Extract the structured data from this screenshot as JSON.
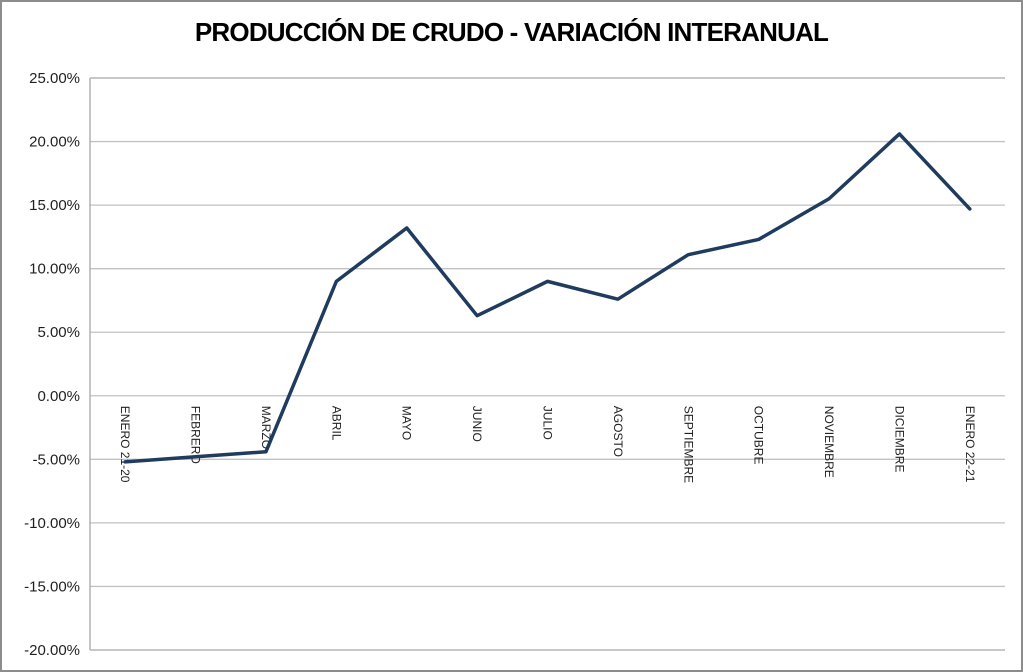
{
  "chart_data": {
    "type": "line",
    "title": "PRODUCCIÓN DE CRUDO - VARIACIÓN INTERANUAL",
    "categories": [
      "ENERO 21-20",
      "FEBRERO",
      "MARZO",
      "ABRIL",
      "MAYO",
      "JUNIO",
      "JULIO",
      "AGOSTO",
      "SEPTIEMBRE",
      "OCTUBRE",
      "NOVIEMBRE",
      "DICIEMBRE",
      "ENERO 22-21"
    ],
    "series": [
      {
        "name": "VARIACIÓN INTERANUAL",
        "values": [
          -5.2,
          -4.8,
          -4.4,
          9.0,
          13.2,
          6.3,
          9.0,
          7.6,
          11.1,
          12.3,
          15.5,
          20.6,
          14.7
        ]
      }
    ],
    "unit": "%",
    "xlabel": "",
    "ylabel": "",
    "ylim": [
      -20,
      25
    ],
    "grid": true,
    "legend": "none",
    "y_axis": {
      "ticks": [
        {
          "value": 25,
          "label": "25.00%"
        },
        {
          "value": 20,
          "label": "20.00%"
        },
        {
          "value": 15,
          "label": "15.00%"
        },
        {
          "value": 10,
          "label": "10.00%"
        },
        {
          "value": 5,
          "label": "5.00%"
        },
        {
          "value": 0,
          "label": "0.00%"
        },
        {
          "value": -5,
          "label": "-5.00%"
        },
        {
          "value": -10,
          "label": "-10.00%"
        },
        {
          "value": -15,
          "label": "-15.00%"
        },
        {
          "value": -20,
          "label": "-20.00%"
        }
      ]
    },
    "colors": {
      "line": "#1F3B5E",
      "gridline": "#C2C2C2",
      "axis": "#A6A6A6",
      "border": "#8C8C8C",
      "tick_text": "#1F1F1F",
      "title_text": "#000000",
      "background": "#FFFFFF"
    }
  }
}
